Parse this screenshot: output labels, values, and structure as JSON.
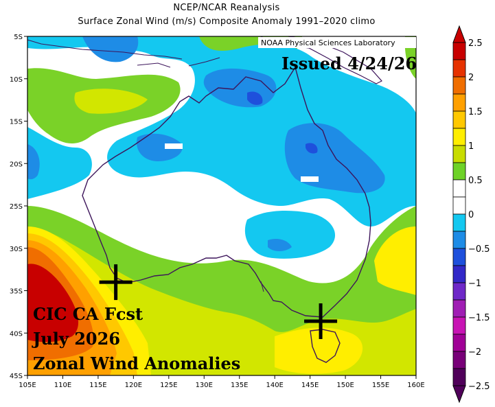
{
  "header": {
    "line1": "NCEP/NCAR Reanalysis",
    "line2": "Surface Zonal Wind (m/s) Composite Anomaly 1991–2020 climo"
  },
  "credit": "NOAA Physical Sciences Laboratory",
  "issued": "Issued 4/24/26",
  "forecast_text": [
    "CIC CA Fcst",
    "July 2026",
    "Zonal Wind Anomalies"
  ],
  "axes": {
    "lat_labels": [
      "5S",
      "10S",
      "15S",
      "20S",
      "25S",
      "30S",
      "35S",
      "40S",
      "45S"
    ],
    "lon_labels": [
      "105E",
      "110E",
      "115E",
      "120E",
      "125E",
      "130E",
      "135E",
      "140E",
      "145E",
      "150E",
      "155E",
      "160E"
    ]
  },
  "markers": [
    {
      "name": "perth-marker",
      "lon": 117.5,
      "lat": -34.0
    },
    {
      "name": "melbourne-marker",
      "lon": 146.5,
      "lat": -38.6
    }
  ],
  "colorbar": {
    "labels": [
      "2.5",
      "2",
      "1.5",
      "1",
      "0.5",
      "0",
      "−0.5",
      "−1",
      "−1.5",
      "−2",
      "−2.5"
    ],
    "colors": [
      "#c80000",
      "#e63200",
      "#f06e00",
      "#ffa000",
      "#ffc800",
      "#ffee00",
      "#c8dc00",
      "#6ed228",
      "#ffffff",
      "#ffffff",
      "#14c8f0",
      "#1e8ce6",
      "#1e50dc",
      "#3228c8",
      "#6e28c8",
      "#a01eb4",
      "#c814b4",
      "#a00096",
      "#780078",
      "#50005a"
    ],
    "colors_top_to_bottom": true
  },
  "palette": {
    "red": "#c80000",
    "orange": "#ff6e00",
    "light-orange": "#ffa000",
    "yellow": "#ffd700",
    "yellow-green": "#d2e600",
    "green": "#7ad228",
    "light-blue": "#14c8f0",
    "blue": "#1e8ce6",
    "dark-blue": "#1e50dc",
    "coast": "#3c145a"
  }
}
